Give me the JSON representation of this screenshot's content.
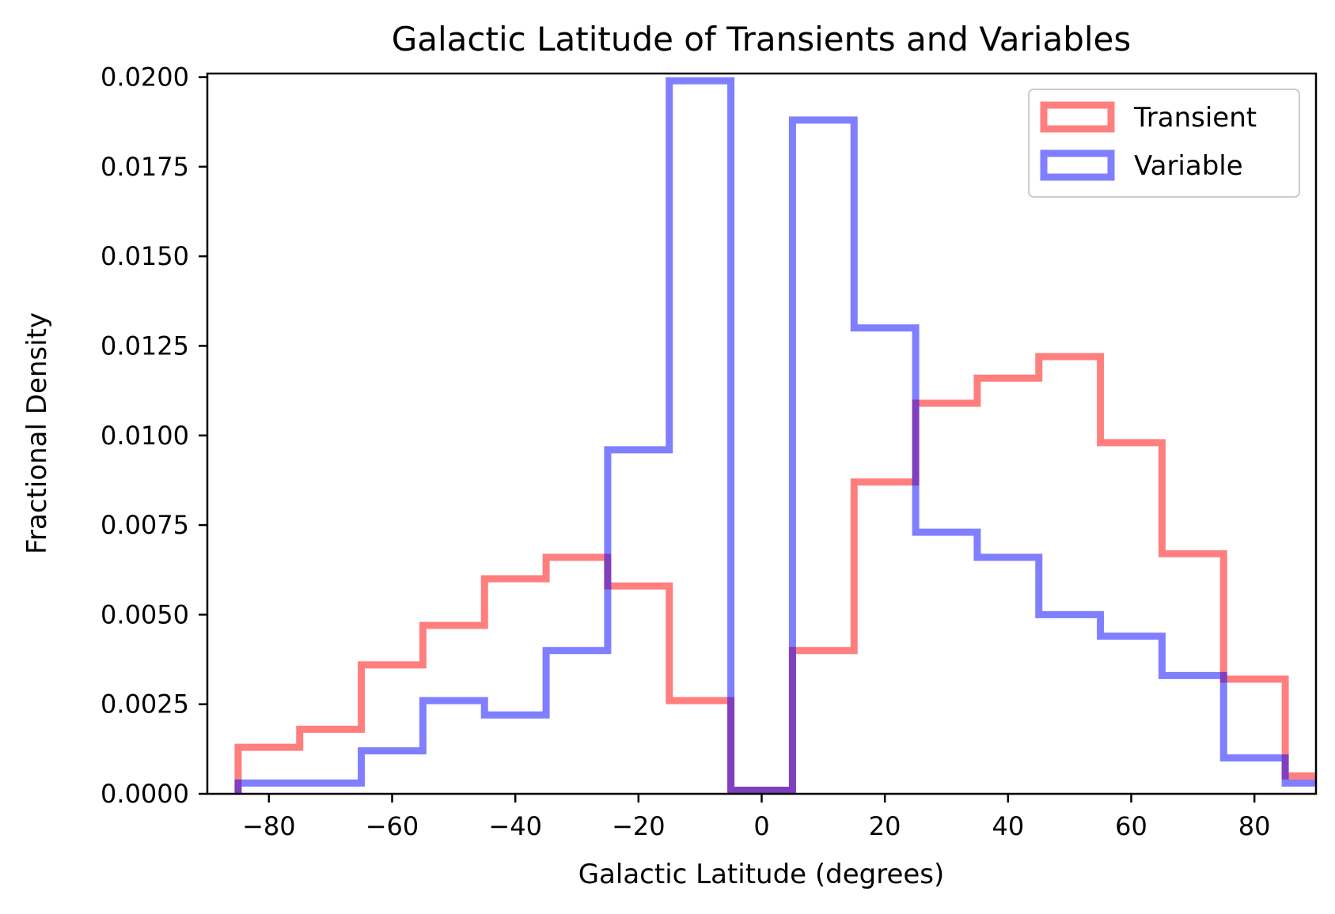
{
  "chart_data": {
    "type": "histogram-step",
    "title": "Galactic Latitude of Transients and Variables",
    "xlabel": "Galactic Latitude (degrees)",
    "ylabel": "Fractional Density",
    "xlim": [
      -90,
      90
    ],
    "ylim": [
      0,
      0.0201
    ],
    "xticks": [
      -80,
      -60,
      -40,
      -20,
      0,
      20,
      40,
      60,
      80
    ],
    "xtick_labels": [
      "−80",
      "−60",
      "−40",
      "−20",
      "0",
      "20",
      "40",
      "60",
      "80"
    ],
    "yticks": [
      0,
      0.0025,
      0.005,
      0.0075,
      0.01,
      0.0125,
      0.015,
      0.0175,
      0.02
    ],
    "ytick_labels": [
      "0.0000",
      "0.0025",
      "0.0050",
      "0.0075",
      "0.0100",
      "0.0125",
      "0.0150",
      "0.0175",
      "0.0200"
    ],
    "bin_edges": [
      -85,
      -75,
      -65,
      -55,
      -45,
      -35,
      -25,
      -15,
      -5,
      5,
      15,
      25,
      35,
      45,
      55,
      65,
      75,
      85,
      95
    ],
    "series": [
      {
        "name": "Transient",
        "color": "#ff0000",
        "values": [
          0.0013,
          0.0018,
          0.0036,
          0.0047,
          0.006,
          0.0066,
          0.0058,
          0.0026,
          0.0001,
          0.004,
          0.0087,
          0.0109,
          0.0116,
          0.0122,
          0.0098,
          0.0067,
          0.0032,
          0.0005
        ]
      },
      {
        "name": "Variable",
        "color": "#0000ff",
        "values": [
          0.0003,
          0.0003,
          0.0012,
          0.0026,
          0.0022,
          0.004,
          0.0096,
          0.0199,
          0.0001,
          0.0188,
          0.013,
          0.0073,
          0.0066,
          0.005,
          0.0044,
          0.0033,
          0.001,
          0.0003
        ]
      }
    ],
    "legend_position": "top-right",
    "grid": false
  }
}
